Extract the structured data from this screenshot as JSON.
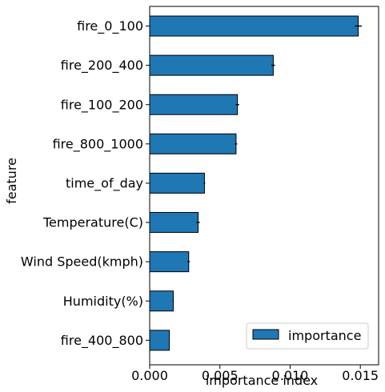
{
  "chart_data": {
    "type": "bar",
    "orientation": "horizontal",
    "categories": [
      "fire_0_100",
      "fire_200_400",
      "fire_100_200",
      "fire_800_1000",
      "time_of_day",
      "Temperature(C)",
      "Wind Speed(kmph)",
      "Humidity(%)",
      "fire_400_800"
    ],
    "series": [
      {
        "name": "importance",
        "values": [
          0.01485,
          0.0088,
          0.00625,
          0.00615,
          0.0039,
          0.00345,
          0.00278,
          0.00168,
          0.0014
        ],
        "errors": [
          0.00025,
          0.00012,
          0.00012,
          8e-05,
          5e-05,
          0.00012,
          8e-05,
          4e-05,
          3e-05
        ],
        "color": "#1f77b4"
      }
    ],
    "xlabel": "importance index",
    "ylabel": "feature",
    "xlim": [
      0,
      0.0163
    ],
    "xticks": [
      0,
      0.005,
      0.01,
      0.015
    ],
    "xtick_labels": [
      "0.000",
      "0.005",
      "0.010",
      "0.015"
    ],
    "legend": {
      "position": "bottom-right",
      "entries": [
        "importance"
      ]
    },
    "grid": false
  }
}
